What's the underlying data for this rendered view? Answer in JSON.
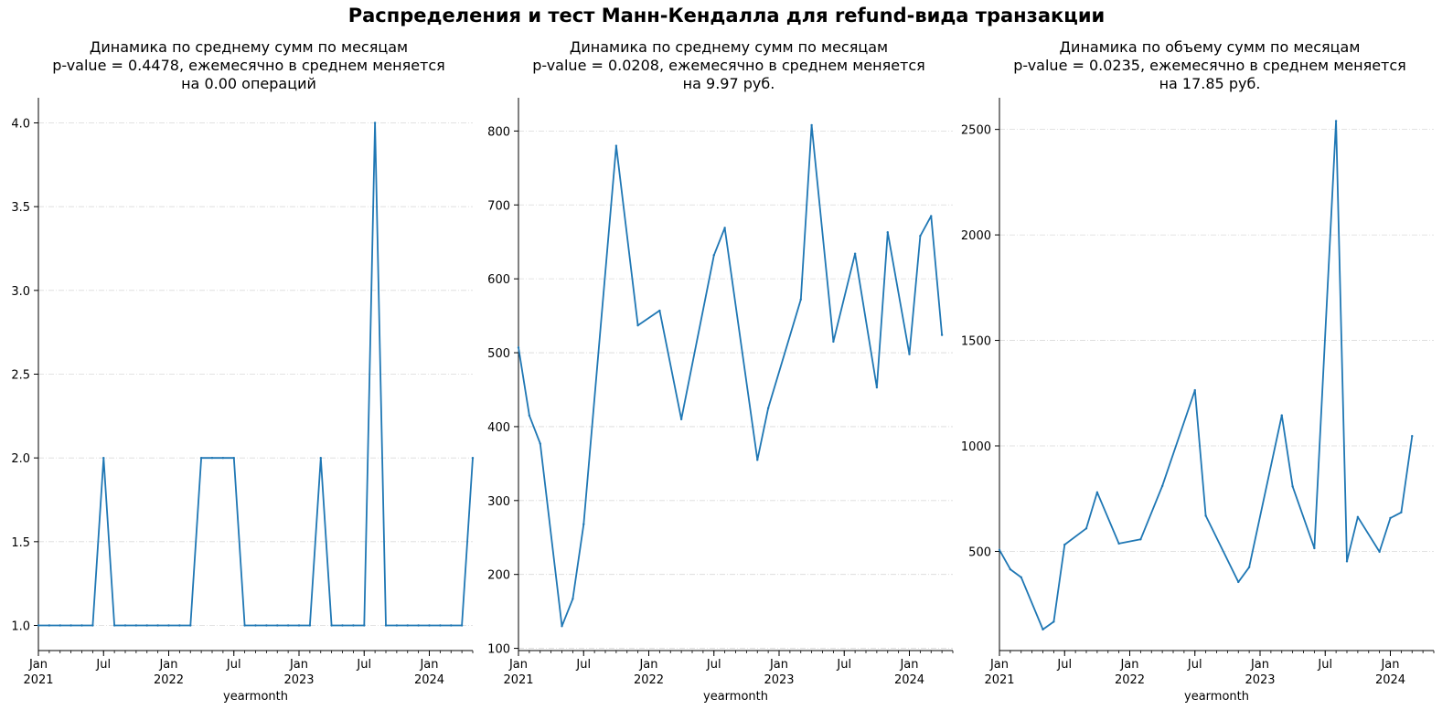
{
  "suptitle": "Распределения и тест Манн-Кендалла для refund-вида транзакции",
  "charts": [
    {
      "title_lines": [
        "Динамика по среднему сумм по месяцам",
        "p-value = 0.4478, ежемесячно в среднем меняется",
        "на 0.00 операций"
      ]
    },
    {
      "title_lines": [
        "Динамика по среднему сумм по месяцам",
        "p-value = 0.0208, ежемесячно в среднем меняется",
        "на 9.97 руб."
      ]
    },
    {
      "title_lines": [
        "Динамика по объему сумм по месяцам",
        "p-value = 0.0235, ежемесячно в среднем меняется",
        "на 17.85 руб."
      ]
    }
  ],
  "chart_data": [
    {
      "type": "line",
      "xlabel": "yearmonth",
      "x": [
        "2021-01",
        "2021-02",
        "2021-03",
        "2021-04",
        "2021-05",
        "2021-06",
        "2021-07",
        "2021-08",
        "2021-09",
        "2021-10",
        "2021-11",
        "2021-12",
        "2022-01",
        "2022-02",
        "2022-03",
        "2022-04",
        "2022-05",
        "2022-06",
        "2022-07",
        "2022-08",
        "2022-09",
        "2022-10",
        "2022-11",
        "2022-12",
        "2023-01",
        "2023-02",
        "2023-03",
        "2023-04",
        "2023-05",
        "2023-06",
        "2023-07",
        "2023-08",
        "2023-09",
        "2023-10",
        "2023-11",
        "2023-12",
        "2024-01",
        "2024-02",
        "2024-03",
        "2024-04",
        "2024-05"
      ],
      "values": [
        1,
        1,
        1,
        1,
        1,
        1,
        2,
        1,
        1,
        1,
        1,
        1,
        1,
        1,
        1,
        2,
        2,
        2,
        2,
        1,
        1,
        1,
        1,
        1,
        1,
        1,
        2,
        1,
        1,
        1,
        1,
        4,
        1,
        1,
        1,
        1,
        1,
        1,
        1,
        1,
        2
      ],
      "yticks": [
        "1.0",
        "1.5",
        "2.0",
        "2.5",
        "3.0",
        "3.5",
        "4.0"
      ],
      "ylim": [
        0.85,
        4.15
      ],
      "x_ticks_major": [
        "Jan\n2021",
        "Jul",
        "Jan\n2022",
        "Jul",
        "Jan\n2023",
        "Jul",
        "Jan\n2024"
      ],
      "grid": "y dash-dot",
      "color": "#1f77b4"
    },
    {
      "type": "line",
      "xlabel": "yearmonth",
      "x": [
        "2021-01",
        "2021-02",
        "2021-03",
        "2021-05",
        "2021-06",
        "2021-07",
        "2021-10",
        "2021-12",
        "2022-02",
        "2022-04",
        "2022-07",
        "2022-08",
        "2022-11",
        "2022-12",
        "2023-03",
        "2023-04",
        "2023-06",
        "2023-08",
        "2023-10",
        "2023-11",
        "2024-01",
        "2024-02",
        "2024-03",
        "2024-04"
      ],
      "values": [
        507,
        415,
        377,
        130,
        167,
        268,
        780,
        537,
        557,
        410,
        632,
        669,
        355,
        425,
        572,
        808,
        515,
        634,
        453,
        663,
        498,
        658,
        685,
        524
      ],
      "yticks": [
        "100",
        "200",
        "300",
        "400",
        "500",
        "600",
        "700",
        "800"
      ],
      "ylim": [
        97,
        845
      ],
      "x_ticks_major": [
        "Jan\n2021",
        "Jul",
        "Jan\n2022",
        "Jul",
        "Jan\n2023",
        "Jul",
        "Jan\n2024"
      ],
      "grid": "y dash-dot",
      "color": "#1f77b4"
    },
    {
      "type": "line",
      "xlabel": "yearmonth",
      "x": [
        "2021-01",
        "2021-02",
        "2021-03",
        "2021-05",
        "2021-06",
        "2021-07",
        "2021-09",
        "2021-10",
        "2021-12",
        "2022-02",
        "2022-04",
        "2022-07",
        "2022-08",
        "2022-11",
        "2022-12",
        "2023-03",
        "2023-04",
        "2023-06",
        "2023-08",
        "2023-09",
        "2023-10",
        "2023-12",
        "2024-01",
        "2024-02",
        "2024-03"
      ],
      "values": [
        507,
        415,
        377,
        130,
        167,
        532,
        609,
        780,
        537,
        557,
        810,
        1264,
        669,
        355,
        425,
        1145,
        808,
        515,
        2540,
        453,
        663,
        498,
        658,
        685,
        1047
      ],
      "yticks": [
        "500",
        "1000",
        "1500",
        "2000",
        "2500"
      ],
      "ylim": [
        30,
        2650
      ],
      "x_ticks_major": [
        "Jan\n2021",
        "Jul",
        "Jan\n2022",
        "Jul",
        "Jan\n2023",
        "Jul",
        "Jan\n2024"
      ],
      "grid": "y dash-dot",
      "color": "#1f77b4"
    }
  ]
}
